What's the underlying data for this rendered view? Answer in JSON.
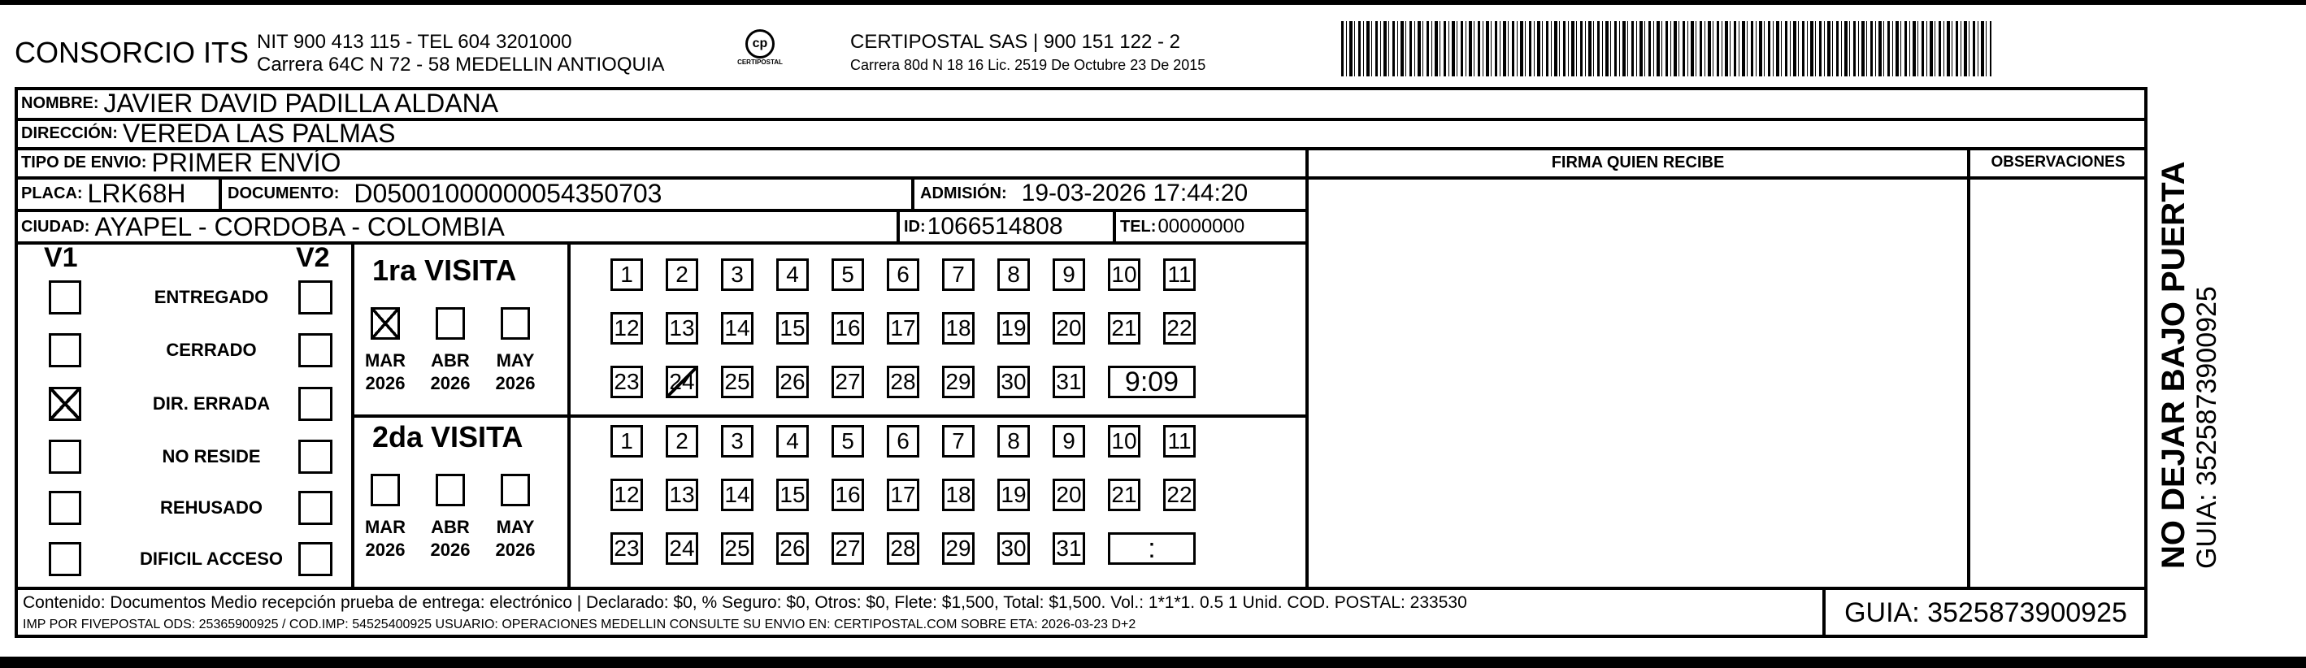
{
  "header": {
    "company": "CONSORCIO ITS",
    "nit": "NIT 900 413 115 - TEL 604 3201000",
    "address": "Carrera 64C N 72 - 58 MEDELLIN ANTIOQUIA",
    "logo_text": "CERTIPOSTAL",
    "carrier": "CERTIPOSTAL SAS | 900 151 122 - 2",
    "carrier_address": "Carrera 80d N 18 16  Lic. 2519 De Octubre 23 De 2015",
    "barcode_icon": "barcode-icon"
  },
  "recipient": {
    "nombre_label": "NOMBRE:",
    "nombre": "JAVIER DAVID PADILLA ALDANA",
    "direccion_label": "DIRECCIÓN:",
    "direccion": "VEREDA LAS PALMAS",
    "tipo_label": "TIPO DE ENVIO:",
    "tipo": "PRIMER ENVÍO",
    "placa_label": "PLACA:",
    "placa": "LRK68H",
    "documento_label": "DOCUMENTO:",
    "documento": "D05001000000054350703",
    "admision_label": "ADMISIÓN:",
    "admision": "19-03-2026 17:44:20",
    "ciudad_label": "CIUDAD:",
    "ciudad": "AYAPEL - CORDOBA - COLOMBIA",
    "id_label": "ID:",
    "id": "1066514808",
    "tel_label": "TEL:",
    "tel": "00000000"
  },
  "columns": {
    "firma": "FIRMA QUIEN RECIBE",
    "observaciones": "OBSERVACIONES"
  },
  "status": {
    "v1": "V1",
    "v2": "V2",
    "items": [
      {
        "label": "ENTREGADO",
        "v1": false,
        "v2": false
      },
      {
        "label": "CERRADO",
        "v1": false,
        "v2": false
      },
      {
        "label": "DIR. ERRADA",
        "v1": true,
        "v2": false
      },
      {
        "label": "NO RESIDE",
        "v1": false,
        "v2": false
      },
      {
        "label": "REHUSADO",
        "v1": false,
        "v2": false
      },
      {
        "label": "DIFICIL ACCESO",
        "v1": false,
        "v2": false
      }
    ]
  },
  "visits": [
    {
      "title": "1ra VISITA",
      "months": [
        {
          "m": "MAR",
          "y": "2026",
          "checked": true
        },
        {
          "m": "ABR",
          "y": "2026",
          "checked": false
        },
        {
          "m": "MAY",
          "y": "2026",
          "checked": false
        }
      ],
      "marked_day": 24,
      "time": "9:09"
    },
    {
      "title": "2da VISITA",
      "months": [
        {
          "m": "MAR",
          "y": "2026",
          "checked": false
        },
        {
          "m": "ABR",
          "y": "2026",
          "checked": false
        },
        {
          "m": "MAY",
          "y": "2026",
          "checked": false
        }
      ],
      "marked_day": null,
      "time": ":"
    }
  ],
  "footer": {
    "contenido": "Contenido: Documentos Medio recepción prueba de entrega: electrónico | Declarado: $0, % Seguro: $0, Otros: $0, Flete: $1,500, Total: $1,500. Vol.: 1*1*1. 0.5  1 Unid. COD. POSTAL: 233530",
    "imp": "IMP POR FIVEPOSTAL ODS: 25365900925 / COD.IMP: 54525400925 USUARIO: OPERACIONES MEDELLIN CONSULTE SU ENVIO EN: CERTIPOSTAL.COM SOBRE ETA: 2026-03-23 D+2",
    "guia": "GUIA: 3525873900925"
  },
  "side": {
    "warning": "NO DEJAR BAJO PUERTA",
    "guia": "GUIA: 3525873900925"
  }
}
